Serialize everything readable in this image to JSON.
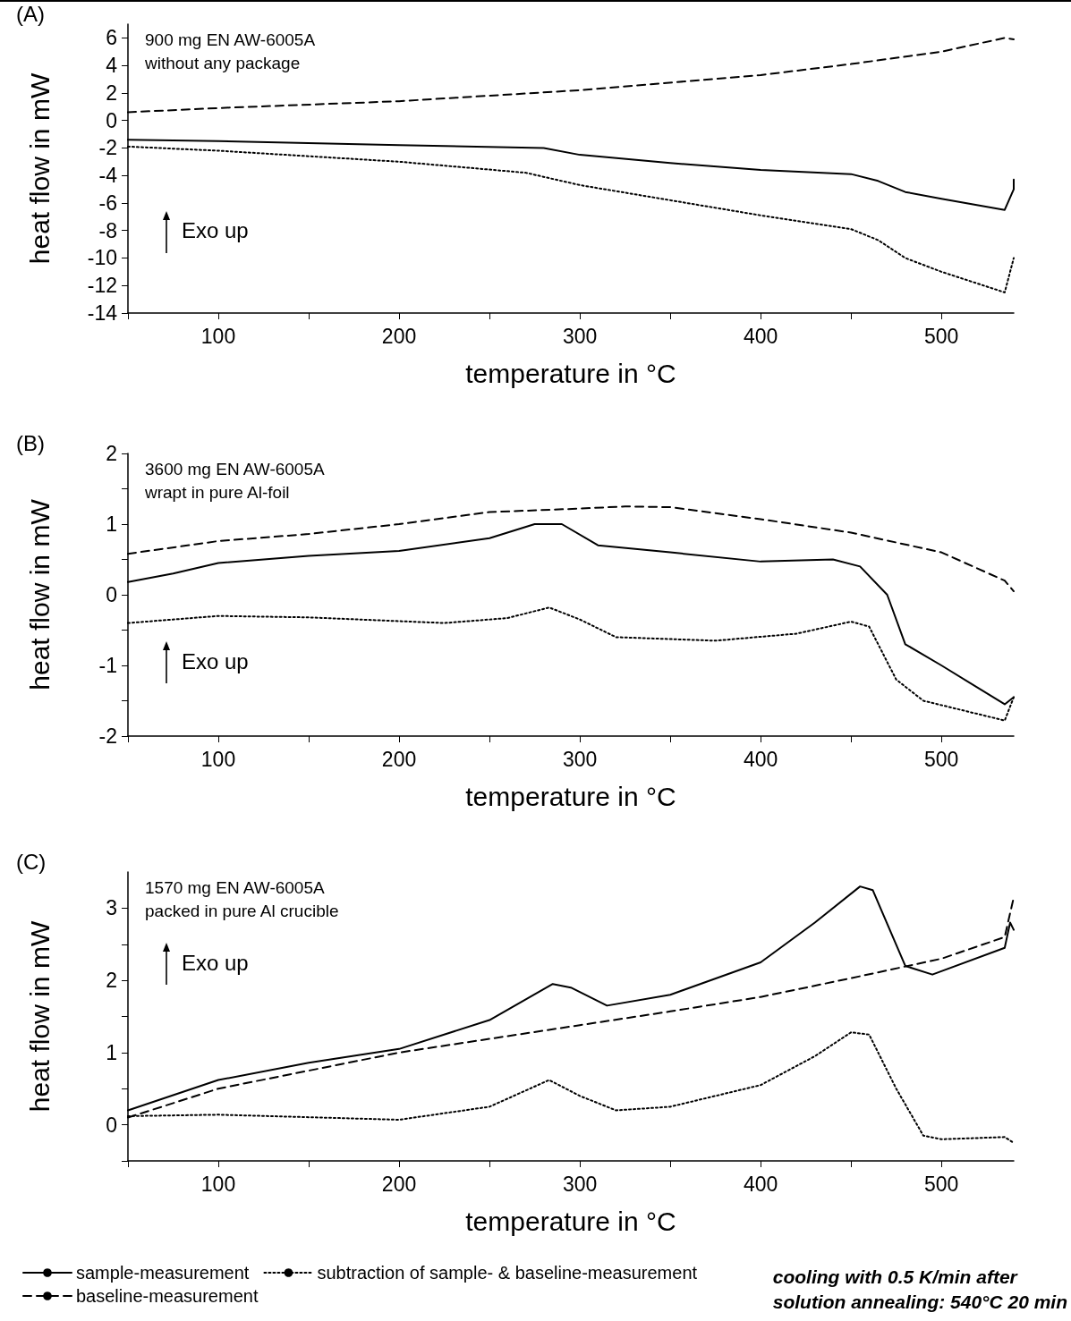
{
  "chart_data": [
    {
      "type": "line",
      "title": "(A)",
      "xlabel": "temperature in °C",
      "ylabel": "heat flow in mW",
      "annotations": [
        "900 mg EN AW-6005A\nwithout any package",
        "Exo up"
      ],
      "xlim": [
        50,
        540
      ],
      "xticks": [
        {
          "value": 50,
          "label": null
        },
        100,
        {
          "value": 150,
          "label": null
        },
        200,
        {
          "value": 250,
          "label": null
        },
        300,
        {
          "value": 350,
          "label": null
        },
        400,
        {
          "value": 450,
          "label": null
        },
        500
      ],
      "ylim": [
        -14,
        7
      ],
      "yticks": [
        -14,
        -12,
        -10,
        -8,
        -6,
        -4,
        -2,
        0,
        2,
        4,
        6
      ],
      "grid": false,
      "legend": false,
      "marker": "none",
      "series": [
        {
          "color": "#000000",
          "line_style": "solid",
          "x": [
            50,
            100,
            200,
            280,
            300,
            350,
            400,
            450,
            465,
            480,
            500,
            535,
            540,
            540
          ],
          "values": [
            -1.4,
            -1.5,
            -1.8,
            -2.0,
            -2.5,
            -3.1,
            -3.6,
            -3.9,
            -4.4,
            -5.2,
            -5.7,
            -6.5,
            -5.0,
            -4.3
          ]
        },
        {
          "color": "#000000",
          "line_style": "dashed",
          "x": [
            50,
            100,
            200,
            300,
            400,
            450,
            500,
            535,
            540
          ],
          "values": [
            0.6,
            0.9,
            1.4,
            2.2,
            3.3,
            4.1,
            5.0,
            6.0,
            5.9
          ]
        },
        {
          "color": "#000000",
          "line_style": "dotted",
          "x": [
            50,
            100,
            200,
            270,
            300,
            350,
            400,
            450,
            465,
            480,
            500,
            535,
            540
          ],
          "values": [
            -1.9,
            -2.2,
            -3.0,
            -3.8,
            -4.7,
            -5.8,
            -6.9,
            -7.9,
            -8.7,
            -10.0,
            -11.0,
            -12.5,
            -10.0
          ]
        }
      ]
    },
    {
      "type": "line",
      "title": "(B)",
      "xlabel": "temperature in °C",
      "ylabel": "heat flow in mW",
      "annotations": [
        "3600 mg EN AW-6005A\nwrapt in pure Al-foil",
        "Exo up"
      ],
      "xlim": [
        50,
        540
      ],
      "xticks": [
        {
          "value": 50,
          "label": null
        },
        100,
        {
          "value": 150,
          "label": null
        },
        200,
        {
          "value": 250,
          "label": null
        },
        300,
        {
          "value": 350,
          "label": null
        },
        400,
        {
          "value": 450,
          "label": null
        },
        500
      ],
      "ylim": [
        -2,
        2
      ],
      "yticks": [
        -2,
        {
          "value": -1.5,
          "label": null
        },
        -1,
        {
          "value": -0.5,
          "label": null
        },
        0,
        {
          "value": 0.5,
          "label": null
        },
        1,
        {
          "value": 1.5,
          "label": null
        },
        2
      ],
      "grid": false,
      "legend": false,
      "marker": "none",
      "series": [
        {
          "color": "#000000",
          "line_style": "solid",
          "x": [
            50,
            75,
            100,
            150,
            200,
            250,
            275,
            290,
            310,
            350,
            400,
            440,
            455,
            470,
            480,
            500,
            535,
            540
          ],
          "values": [
            0.18,
            0.3,
            0.45,
            0.55,
            0.62,
            0.8,
            1.0,
            1.0,
            0.7,
            0.6,
            0.47,
            0.5,
            0.4,
            0.0,
            -0.7,
            -1.0,
            -1.55,
            -1.45
          ]
        },
        {
          "color": "#000000",
          "line_style": "dashed",
          "x": [
            50,
            100,
            150,
            200,
            250,
            300,
            325,
            350,
            400,
            450,
            500,
            535,
            540
          ],
          "values": [
            0.58,
            0.76,
            0.86,
            1.0,
            1.17,
            1.22,
            1.25,
            1.24,
            1.07,
            0.88,
            0.6,
            0.2,
            0.05
          ]
        },
        {
          "color": "#000000",
          "line_style": "dotted",
          "x": [
            50,
            100,
            150,
            225,
            260,
            283,
            300,
            320,
            375,
            420,
            450,
            460,
            475,
            490,
            535,
            540
          ],
          "values": [
            -0.4,
            -0.3,
            -0.32,
            -0.4,
            -0.33,
            -0.18,
            -0.35,
            -0.6,
            -0.65,
            -0.55,
            -0.38,
            -0.45,
            -1.2,
            -1.5,
            -1.78,
            -1.45
          ]
        }
      ]
    },
    {
      "type": "line",
      "title": "(C)",
      "xlabel": "temperature in °C",
      "ylabel": "heat flow in mW",
      "annotations": [
        "1570 mg EN AW-6005A\npacked in pure Al crucible",
        "Exo up",
        "cooling with 0.5 K/min after\nsolution annealing: 540°C 20 min"
      ],
      "xlim": [
        50,
        540
      ],
      "xticks": [
        {
          "value": 50,
          "label": null
        },
        100,
        {
          "value": 150,
          "label": null
        },
        200,
        {
          "value": 250,
          "label": null
        },
        300,
        {
          "value": 350,
          "label": null
        },
        400,
        {
          "value": 450,
          "label": null
        },
        500
      ],
      "ylim": [
        -0.5,
        3.5
      ],
      "yticks": [
        {
          "value": -0.5,
          "label": null
        },
        0,
        {
          "value": 0.5,
          "label": null
        },
        1,
        {
          "value": 1.5,
          "label": null
        },
        2,
        {
          "value": 2.5,
          "label": null
        },
        3
      ],
      "grid": false,
      "legend": "bottom left",
      "marker": "none",
      "series": [
        {
          "name": "sample-measurement",
          "color": "#000000",
          "line_style": "solid",
          "x": [
            50,
            100,
            150,
            200,
            250,
            285,
            295,
            315,
            350,
            400,
            430,
            455,
            462,
            480,
            495,
            535,
            538,
            540
          ],
          "values": [
            0.2,
            0.62,
            0.86,
            1.05,
            1.45,
            1.95,
            1.9,
            1.65,
            1.8,
            2.25,
            2.8,
            3.3,
            3.25,
            2.2,
            2.08,
            2.45,
            2.8,
            2.7
          ]
        },
        {
          "name": "baseline-measurement",
          "color": "#000000",
          "line_style": "dashed",
          "x": [
            50,
            100,
            200,
            300,
            350,
            400,
            450,
            500,
            535,
            540
          ],
          "values": [
            0.1,
            0.5,
            1.0,
            1.38,
            1.57,
            1.77,
            2.03,
            2.3,
            2.6,
            3.15
          ]
        },
        {
          "name": "subtraction of sample- & baseline-measurement",
          "color": "#000000",
          "line_style": "dotted",
          "x": [
            50,
            100,
            200,
            250,
            283,
            300,
            320,
            350,
            400,
            430,
            450,
            460,
            475,
            490,
            500,
            535,
            540
          ],
          "values": [
            0.12,
            0.14,
            0.07,
            0.25,
            0.62,
            0.4,
            0.2,
            0.25,
            0.55,
            0.95,
            1.28,
            1.25,
            0.5,
            -0.15,
            -0.2,
            -0.17,
            -0.25
          ]
        }
      ]
    }
  ]
}
